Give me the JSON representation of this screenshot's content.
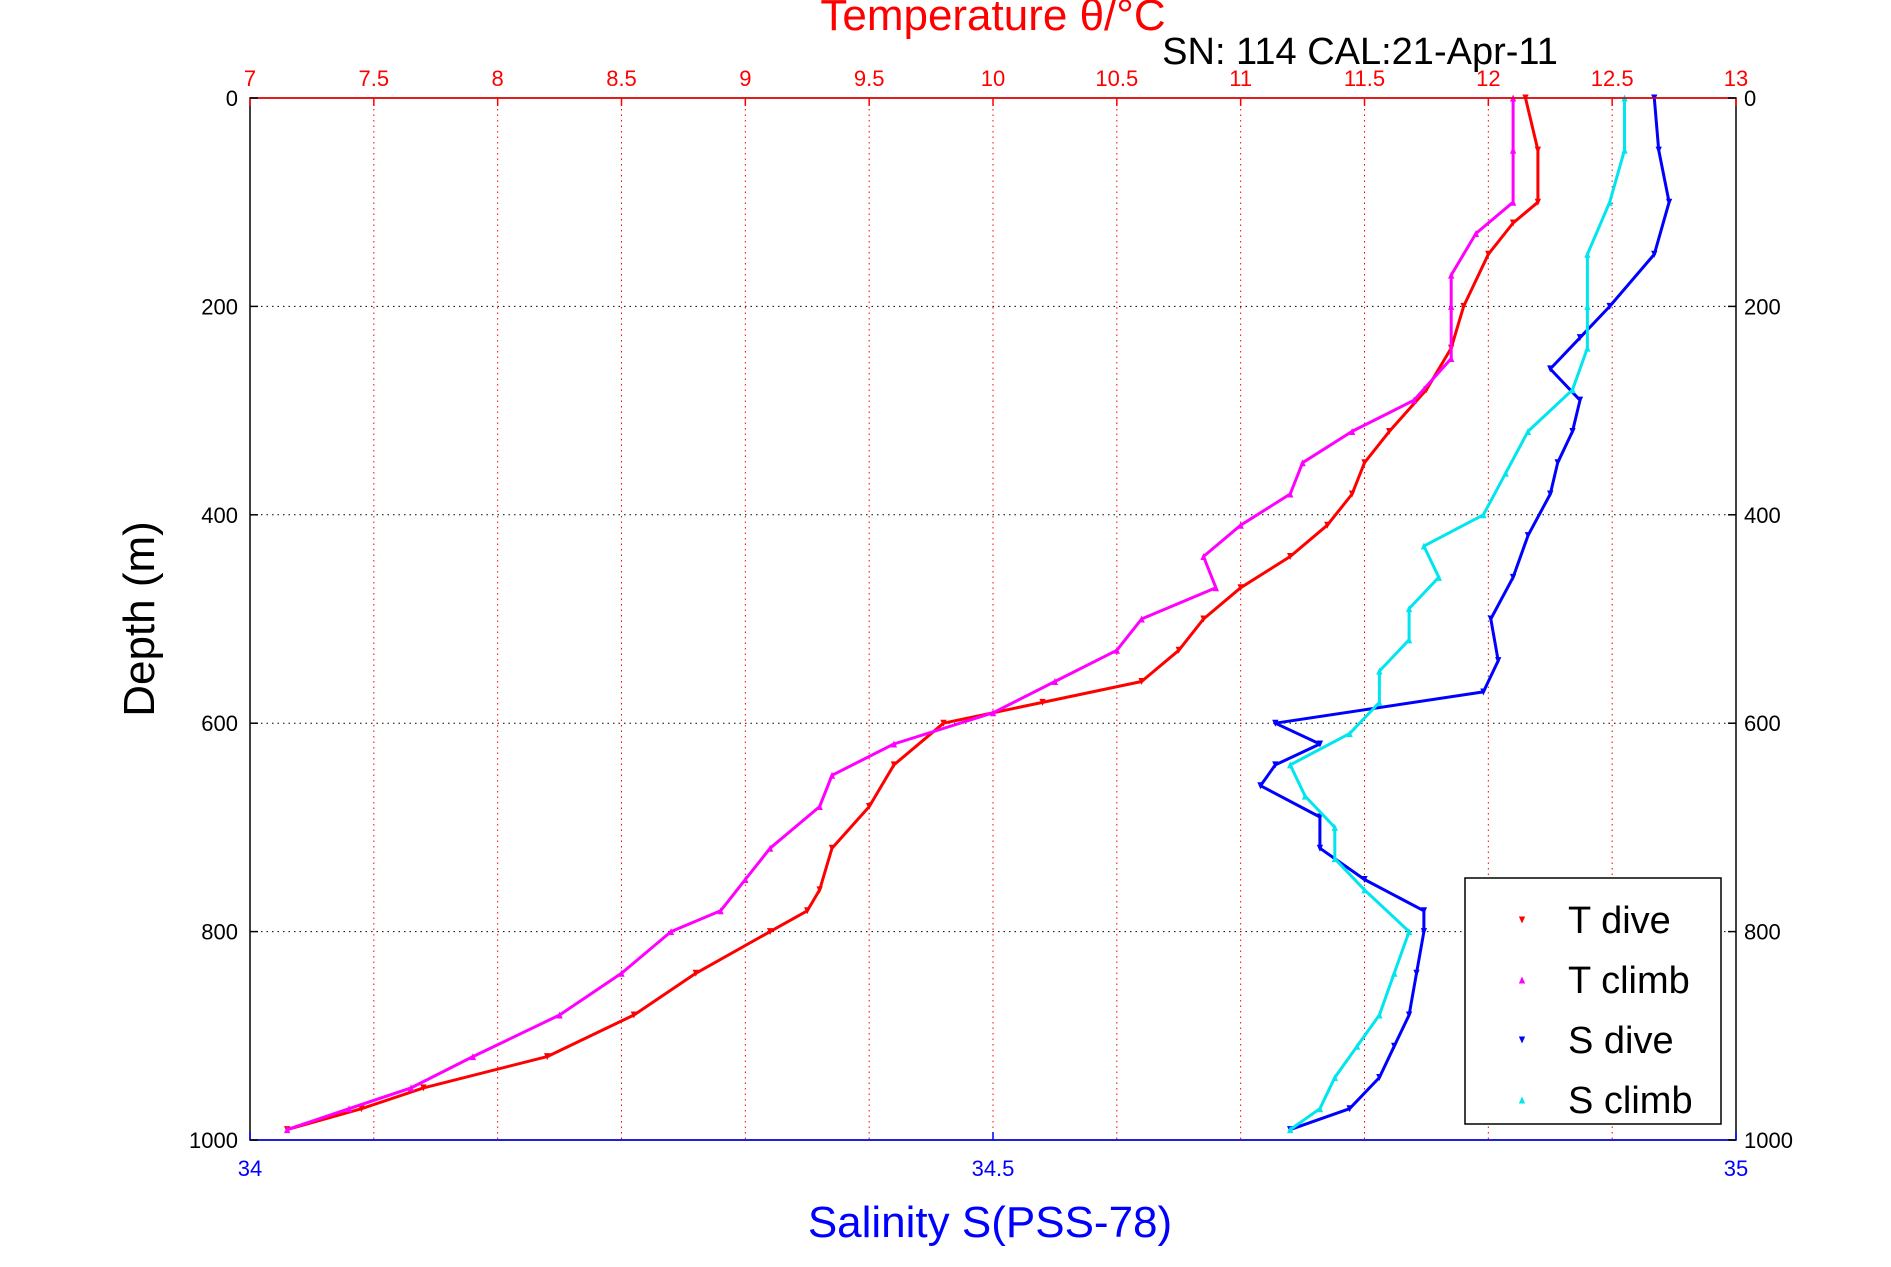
{
  "chart_data": {
    "type": "scatter",
    "title": "Temperature θ/°C",
    "subtitle": "SN: 114  CAL:21-Apr-11",
    "xlabel": "Salinity S(PSS-78)",
    "ylabel": "Depth (m)",
    "top_axis": {
      "label": "Temperature θ/°C",
      "range": [
        7,
        13
      ],
      "ticks": [
        "7",
        "7.5",
        "8",
        "8.5",
        "9",
        "9.5",
        "10",
        "10.5",
        "11",
        "11.5",
        "12",
        "12.5",
        "13"
      ],
      "color": "#ff0000"
    },
    "bottom_axis": {
      "label": "Salinity S(PSS-78)",
      "range": [
        34,
        35
      ],
      "ticks": [
        "34",
        "34.5",
        "35"
      ],
      "color": "#0000ff"
    },
    "depth_axis": {
      "range": [
        0,
        1000
      ],
      "reversed": true,
      "ticks": [
        "0",
        "200",
        "400",
        "600",
        "800",
        "1000"
      ]
    },
    "grid": true,
    "legend": {
      "position": "bottom-right",
      "entries": [
        "T dive",
        "T climb",
        "S dive",
        "S climb"
      ]
    },
    "series": [
      {
        "name": "T dive",
        "axis": "temperature",
        "color": "#ff0000",
        "marker": "triangle-down",
        "depth": [
          0,
          50,
          100,
          120,
          150,
          200,
          240,
          280,
          320,
          350,
          380,
          410,
          440,
          470,
          500,
          530,
          560,
          580,
          600,
          640,
          680,
          720,
          760,
          780,
          800,
          840,
          880,
          920,
          950,
          970,
          990
        ],
        "values": [
          12.15,
          12.2,
          12.2,
          12.1,
          12.0,
          11.9,
          11.85,
          11.75,
          11.6,
          11.5,
          11.45,
          11.35,
          11.2,
          11.0,
          10.85,
          10.75,
          10.6,
          10.2,
          9.8,
          9.6,
          9.5,
          9.35,
          9.3,
          9.25,
          9.1,
          8.8,
          8.55,
          8.2,
          7.7,
          7.45,
          7.15
        ]
      },
      {
        "name": "T climb",
        "axis": "temperature",
        "color": "#ff00ff",
        "marker": "triangle-up",
        "depth": [
          0,
          50,
          100,
          130,
          170,
          200,
          250,
          290,
          320,
          350,
          380,
          410,
          440,
          470,
          500,
          530,
          560,
          590,
          620,
          650,
          680,
          720,
          750,
          780,
          800,
          840,
          880,
          920,
          950,
          970,
          990
        ],
        "values": [
          12.1,
          12.1,
          12.1,
          11.95,
          11.85,
          11.85,
          11.85,
          11.7,
          11.45,
          11.25,
          11.2,
          11.0,
          10.85,
          10.9,
          10.6,
          10.5,
          10.25,
          10.0,
          9.6,
          9.35,
          9.3,
          9.1,
          9.0,
          8.9,
          8.7,
          8.5,
          8.25,
          7.9,
          7.65,
          7.4,
          7.15
        ]
      },
      {
        "name": "S dive",
        "axis": "salinity",
        "color": "#0000ff",
        "marker": "triangle-down",
        "depth": [
          0,
          50,
          100,
          150,
          200,
          230,
          260,
          290,
          320,
          350,
          380,
          420,
          460,
          500,
          540,
          570,
          600,
          620,
          640,
          660,
          690,
          720,
          750,
          780,
          800,
          840,
          880,
          910,
          940,
          970,
          990
        ],
        "values": [
          34.945,
          34.948,
          34.955,
          34.945,
          34.915,
          34.895,
          34.875,
          34.895,
          34.89,
          34.88,
          34.875,
          34.86,
          34.85,
          34.835,
          34.84,
          34.83,
          34.69,
          34.72,
          34.69,
          34.68,
          34.72,
          34.72,
          34.75,
          34.79,
          34.79,
          34.785,
          34.78,
          34.77,
          34.76,
          34.74,
          34.7
        ]
      },
      {
        "name": "S climb",
        "axis": "salinity",
        "color": "#00e5ee",
        "marker": "triangle-up",
        "depth": [
          0,
          50,
          100,
          150,
          200,
          240,
          280,
          320,
          360,
          400,
          430,
          460,
          490,
          520,
          550,
          580,
          610,
          640,
          670,
          700,
          730,
          760,
          800,
          840,
          880,
          910,
          940,
          970,
          990
        ],
        "values": [
          34.925,
          34.925,
          34.915,
          34.9,
          34.9,
          34.9,
          34.89,
          34.86,
          34.845,
          34.83,
          34.79,
          34.8,
          34.78,
          34.78,
          34.76,
          34.76,
          34.74,
          34.7,
          34.71,
          34.73,
          34.73,
          34.75,
          34.78,
          34.77,
          34.76,
          34.745,
          34.73,
          34.72,
          34.7
        ]
      }
    ]
  }
}
